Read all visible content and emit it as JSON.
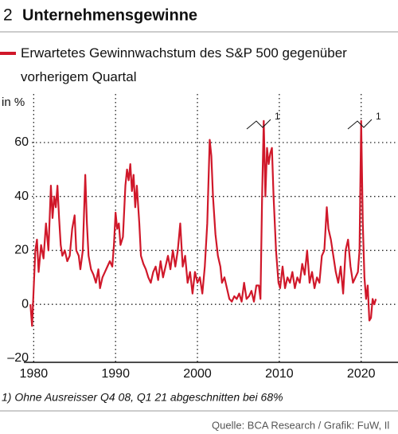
{
  "chart_data": {
    "type": "line",
    "number": "2",
    "title": "Unternehmensgewinne",
    "ylabel": "in %",
    "footnote": "1) Ohne Ausreisser Q4 08, Q1 21 abgeschnitten bei 68%",
    "source": "Quelle: BCA Research / Grafik: FuW, Il",
    "annotations": [
      "1",
      "1"
    ],
    "grid": true,
    "xlim": [
      1978.8,
      2024.5
    ],
    "ylim": [
      -21.5,
      78
    ],
    "xticks": [
      1980,
      1990,
      2000,
      2010,
      2020
    ],
    "yticks": [
      {
        "value": -20,
        "label": "–20"
      },
      0,
      20,
      40,
      60
    ],
    "x": [
      1979.6,
      1979.8,
      1980.2,
      1980.4,
      1980.6,
      1980.9,
      1981.2,
      1981.5,
      1981.8,
      1982.1,
      1982.3,
      1982.5,
      1982.7,
      1982.9,
      1983.1,
      1983.3,
      1983.5,
      1983.8,
      1984.1,
      1984.4,
      1984.7,
      1985.0,
      1985.2,
      1985.5,
      1985.7,
      1986.0,
      1986.3,
      1986.5,
      1986.7,
      1987.0,
      1987.3,
      1987.6,
      1987.9,
      1988.1,
      1988.4,
      1988.7,
      1989.0,
      1989.3,
      1989.6,
      1989.8,
      1990.0,
      1990.2,
      1990.4,
      1990.6,
      1990.9,
      1991.2,
      1991.4,
      1991.6,
      1991.8,
      1992.0,
      1992.2,
      1992.4,
      1992.6,
      1992.9,
      1993.1,
      1993.4,
      1993.7,
      1994.0,
      1994.3,
      1994.6,
      1994.9,
      1995.2,
      1995.5,
      1995.8,
      1996.1,
      1996.4,
      1996.7,
      1997.0,
      1997.3,
      1997.6,
      1997.9,
      1998.2,
      1998.5,
      1998.8,
      1999.1,
      1999.4,
      1999.7,
      2000.0,
      2000.3,
      2000.6,
      2000.9,
      2001.2,
      2001.5,
      2001.7,
      2001.9,
      2002.2,
      2002.5,
      2002.8,
      2003.0,
      2003.3,
      2003.6,
      2003.9,
      2004.2,
      2004.5,
      2004.8,
      2005.1,
      2005.4,
      2005.7,
      2006.0,
      2006.3,
      2006.6,
      2006.9,
      2007.2,
      2007.5,
      2007.7,
      2007.9,
      2008.1,
      2008.3,
      2008.5,
      2008.7,
      2008.9,
      2009.1,
      2009.3,
      2009.6,
      2009.9,
      2010.1,
      2010.4,
      2010.7,
      2011.0,
      2011.3,
      2011.6,
      2011.9,
      2012.2,
      2012.5,
      2012.8,
      2013.1,
      2013.4,
      2013.7,
      2014.0,
      2014.3,
      2014.6,
      2014.9,
      2015.2,
      2015.5,
      2015.8,
      2016.0,
      2016.3,
      2016.6,
      2016.9,
      2017.2,
      2017.5,
      2017.8,
      2018.1,
      2018.4,
      2018.7,
      2019.0,
      2019.3,
      2019.6,
      2019.8,
      2020.0,
      2020.2,
      2020.4,
      2020.6,
      2020.8,
      2021.0,
      2021.2,
      2021.4,
      2021.6,
      2021.8
    ],
    "series": [
      {
        "name": "Erwartetes Gewinnwachstum des S&P 500 gegenüber vorherigem Quartal",
        "color": "#d0182a",
        "values": [
          0,
          -8,
          20,
          24,
          12,
          22,
          17,
          30,
          20,
          44,
          32,
          40,
          36,
          44,
          32,
          22,
          18,
          20,
          16,
          18,
          28,
          33,
          20,
          18,
          13,
          20,
          48,
          30,
          18,
          13,
          11,
          8,
          13,
          6,
          10,
          12,
          14,
          16,
          14,
          22,
          34,
          28,
          30,
          22,
          25,
          44,
          50,
          46,
          52,
          42,
          48,
          36,
          44,
          30,
          18,
          15,
          13,
          10,
          8,
          12,
          14,
          9,
          16,
          10,
          14,
          18,
          13,
          20,
          14,
          20,
          30,
          14,
          18,
          8,
          12,
          4,
          12,
          8,
          10,
          4,
          14,
          30,
          61,
          55,
          40,
          26,
          18,
          14,
          8,
          10,
          6,
          2,
          1,
          3,
          2,
          4,
          1,
          8,
          2,
          3,
          5,
          1,
          7,
          7,
          2,
          40,
          68,
          40,
          58,
          52,
          56,
          58,
          40,
          20,
          8,
          6,
          14,
          6,
          10,
          8,
          12,
          6,
          10,
          8,
          15,
          11,
          20,
          8,
          12,
          6,
          10,
          8,
          18,
          20,
          36,
          28,
          24,
          18,
          12,
          8,
          14,
          4,
          20,
          24,
          14,
          8,
          10,
          12,
          20,
          68,
          30,
          10,
          2,
          7,
          -6,
          -5,
          2,
          0,
          2
        ]
      }
    ]
  }
}
